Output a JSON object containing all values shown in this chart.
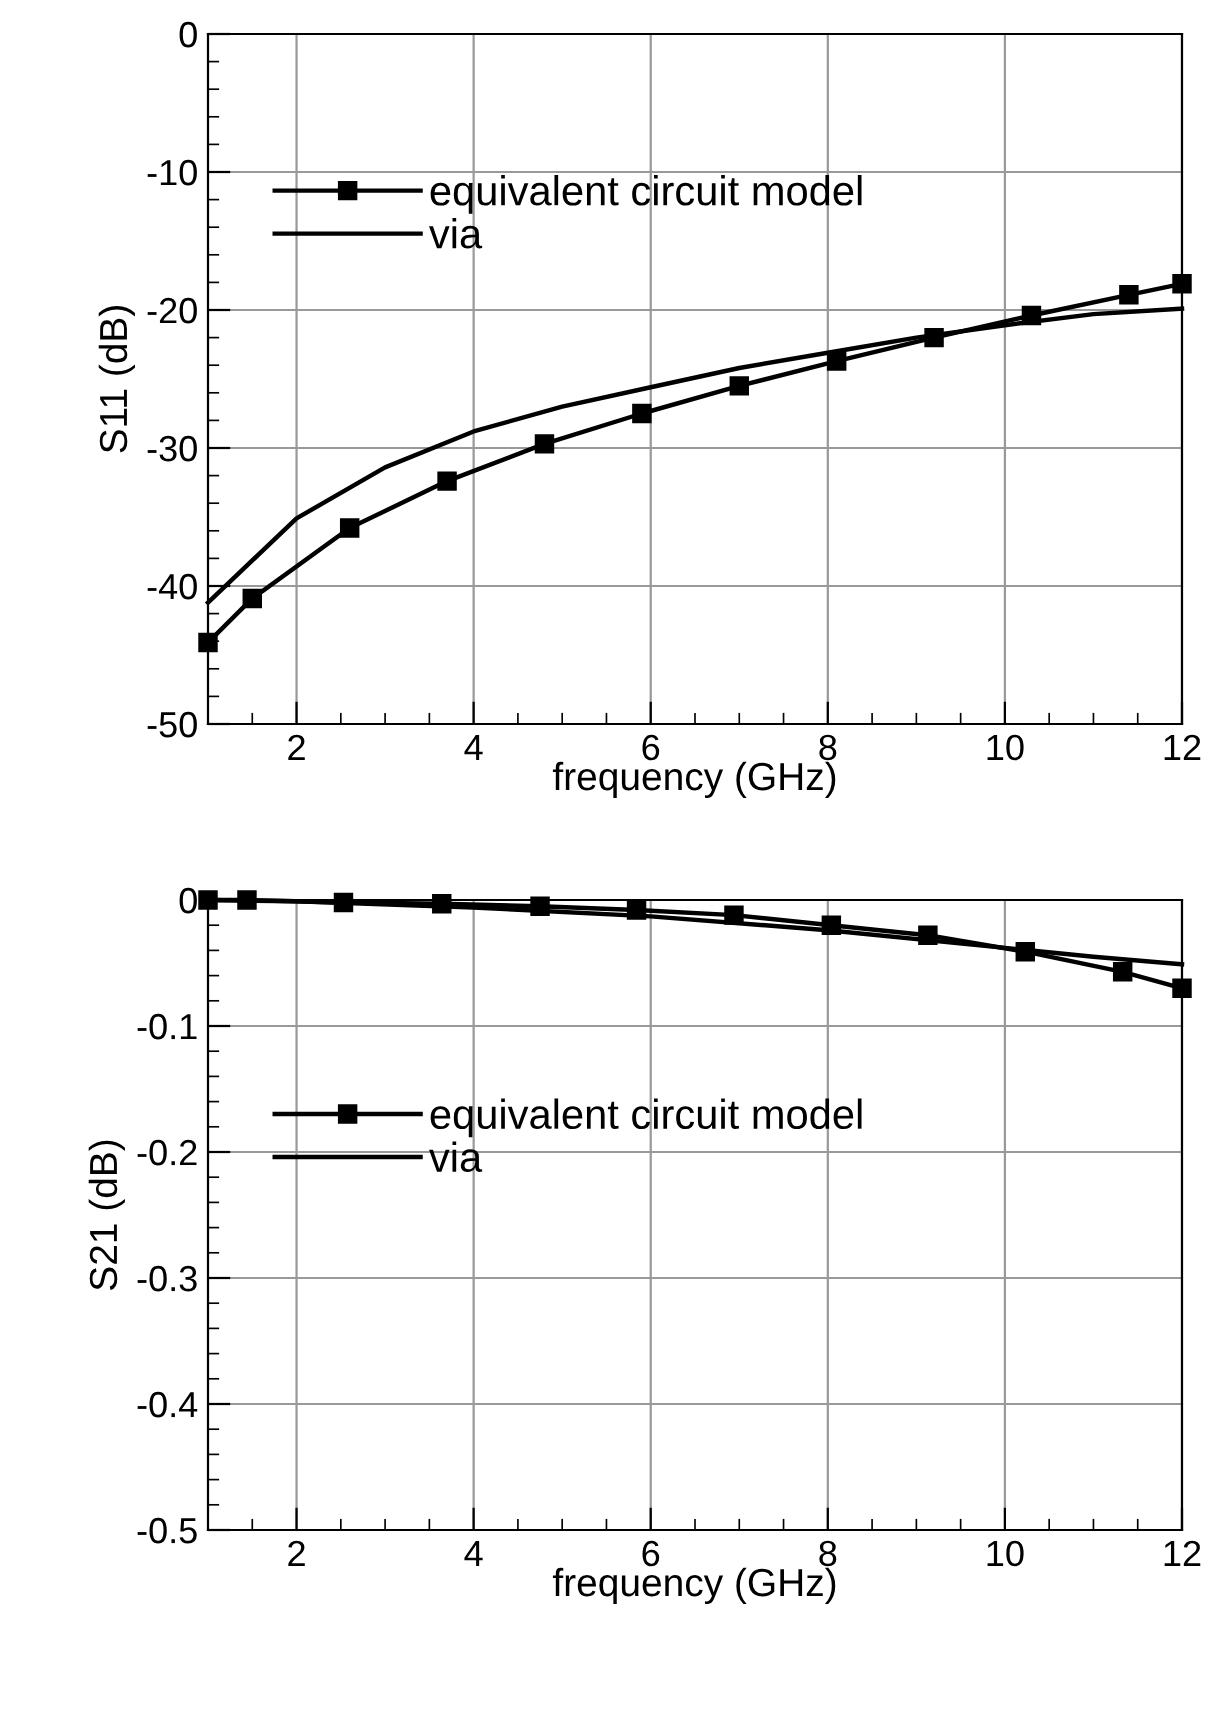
{
  "chart_data": [
    {
      "type": "line",
      "xlabel": "frequency (GHz)",
      "ylabel": "S11 (dB)",
      "xlim": [
        1,
        12
      ],
      "xticks": [
        2,
        4,
        6,
        8,
        10,
        12
      ],
      "ylim": [
        -50,
        0
      ],
      "yticks": [
        -50,
        -40,
        -30,
        -20,
        -10,
        0
      ],
      "grid": true,
      "legend": "top left",
      "series": [
        {
          "name": "equivalent circuit model",
          "color": "#000000",
          "marker": "square",
          "x": [
            1,
            1.5,
            2.6,
            3.7,
            4.8,
            5.9,
            7.0,
            8.1,
            9.2,
            10.3,
            11.4,
            12
          ],
          "values": [
            -44.1,
            -40.9,
            -35.8,
            -32.4,
            -29.7,
            -27.5,
            -25.5,
            -23.7,
            -22.0,
            -20.4,
            -18.9,
            -18.1
          ]
        },
        {
          "name": "via",
          "color": "#000000",
          "marker": "none",
          "x": [
            1,
            2,
            3,
            4,
            5,
            6,
            7,
            8,
            9,
            10,
            11,
            12
          ],
          "values": [
            -41.2,
            -35.1,
            -31.4,
            -28.8,
            -27.0,
            -25.6,
            -24.2,
            -23.1,
            -22.0,
            -21.1,
            -20.3,
            -19.9
          ]
        }
      ]
    },
    {
      "type": "line",
      "xlabel": "frequency (GHz)",
      "ylabel": "S21 (dB)",
      "xlim": [
        1,
        12
      ],
      "xticks": [
        2,
        4,
        6,
        8,
        10,
        12
      ],
      "ylim": [
        -0.5,
        0
      ],
      "yticks": [
        -0.5,
        -0.4,
        -0.3,
        -0.2,
        -0.1,
        0
      ],
      "grid": true,
      "legend": "left",
      "series": [
        {
          "name": "equivalent circuit model",
          "color": "#000000",
          "marker": "square",
          "x": [
            1,
            1.44,
            2.53,
            3.64,
            4.75,
            5.84,
            6.94,
            8.04,
            9.13,
            10.23,
            11.33,
            12
          ],
          "values": [
            0,
            0,
            -0.002,
            -0.003,
            -0.005,
            -0.008,
            -0.012,
            -0.02,
            -0.028,
            -0.041,
            -0.057,
            -0.07
          ]
        },
        {
          "name": "via",
          "color": "#000000",
          "marker": "none",
          "x": [
            1,
            2,
            4,
            6,
            8,
            10,
            11,
            12
          ],
          "values": [
            0,
            -0.001,
            -0.006,
            -0.013,
            -0.024,
            -0.038,
            -0.045,
            -0.051
          ]
        }
      ]
    }
  ]
}
